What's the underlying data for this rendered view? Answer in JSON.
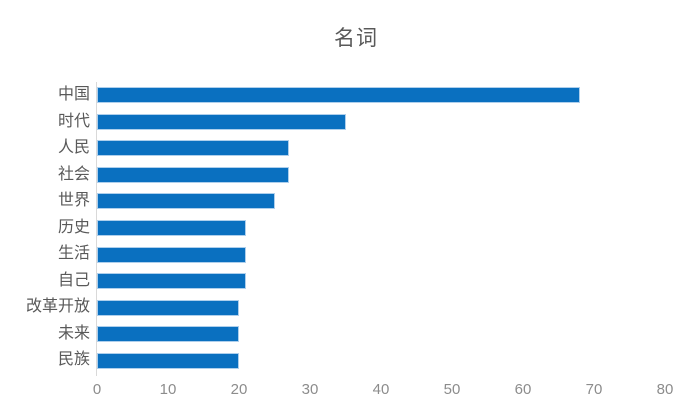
{
  "chart_data": {
    "type": "bar",
    "orientation": "horizontal",
    "title": "名词",
    "categories": [
      "中国",
      "时代",
      "人民",
      "社会",
      "世界",
      "历史",
      "生活",
      "自己",
      "改革开放",
      "未来",
      "民族"
    ],
    "values": [
      68,
      35,
      27,
      27,
      25,
      21,
      21,
      21,
      20,
      20,
      20
    ],
    "xlabel": "",
    "ylabel": "",
    "xlim": [
      0,
      80
    ],
    "xticks": [
      0,
      10,
      20,
      30,
      40,
      50,
      60,
      70,
      80
    ],
    "grid": false,
    "legend": false,
    "colors": {
      "bar_fill": "#0a70c0",
      "bar_edge": "#aecfec",
      "axis_line": "#d9d9d9",
      "title_text": "#595959",
      "category_text": "#595959",
      "tick_text": "#8c8c8c",
      "background": "#ffffff"
    }
  }
}
